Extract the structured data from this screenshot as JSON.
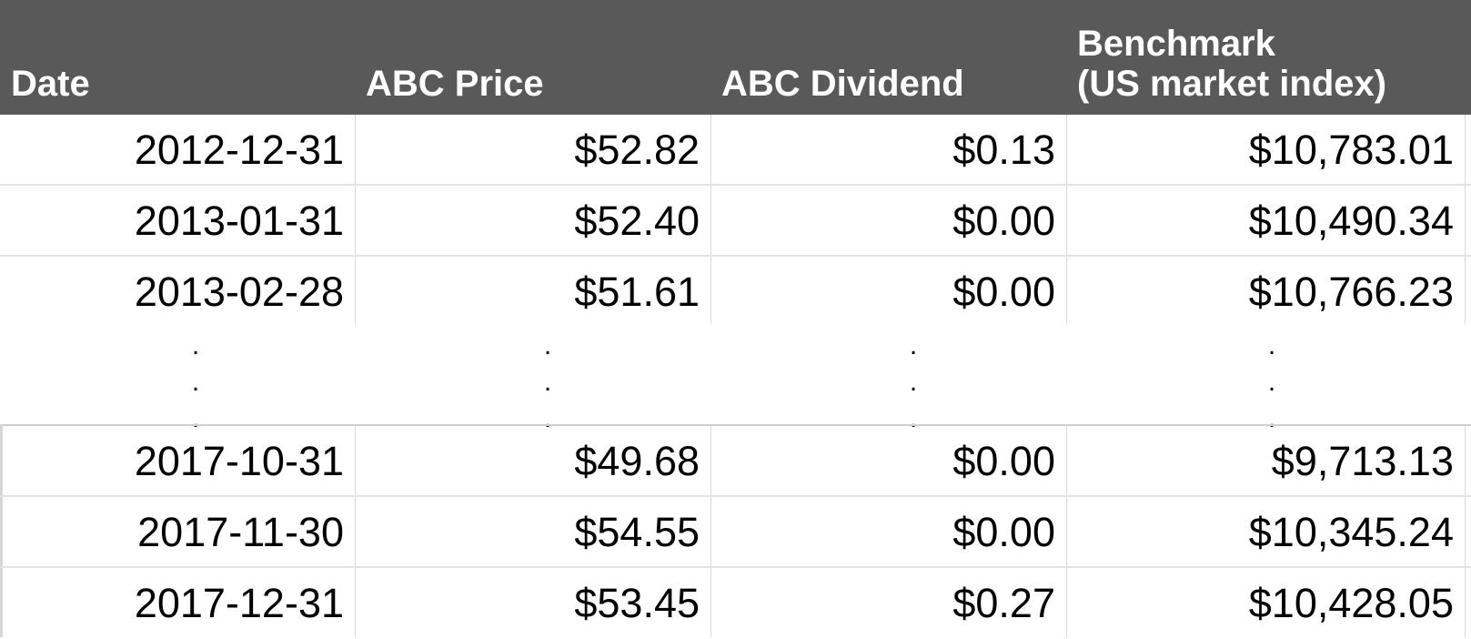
{
  "table": {
    "headers": [
      "Date",
      "ABC Price",
      "ABC Dividend",
      "Benchmark\n(US market index)"
    ],
    "rows_top": [
      [
        "2012-12-31",
        "$52.82",
        "$0.13",
        "$10,783.01"
      ],
      [
        "2013-01-31",
        "$52.40",
        "$0.00",
        "$10,490.34"
      ],
      [
        "2013-02-28",
        "$51.61",
        "$0.00",
        "$10,766.23"
      ]
    ],
    "ellipsis": ".\n.\n.",
    "rows_bottom": [
      [
        "2017-10-31",
        "$49.68",
        "$0.00",
        "$9,713.13"
      ],
      [
        "2017-11-30",
        "$54.55",
        "$0.00",
        "$10,345.24"
      ],
      [
        "2017-12-31",
        "$53.45",
        "$0.27",
        "$10,428.05"
      ]
    ]
  },
  "colors": {
    "header_bg": "#595959",
    "header_text": "#ffffff",
    "gridline": "#d9d9d9"
  }
}
